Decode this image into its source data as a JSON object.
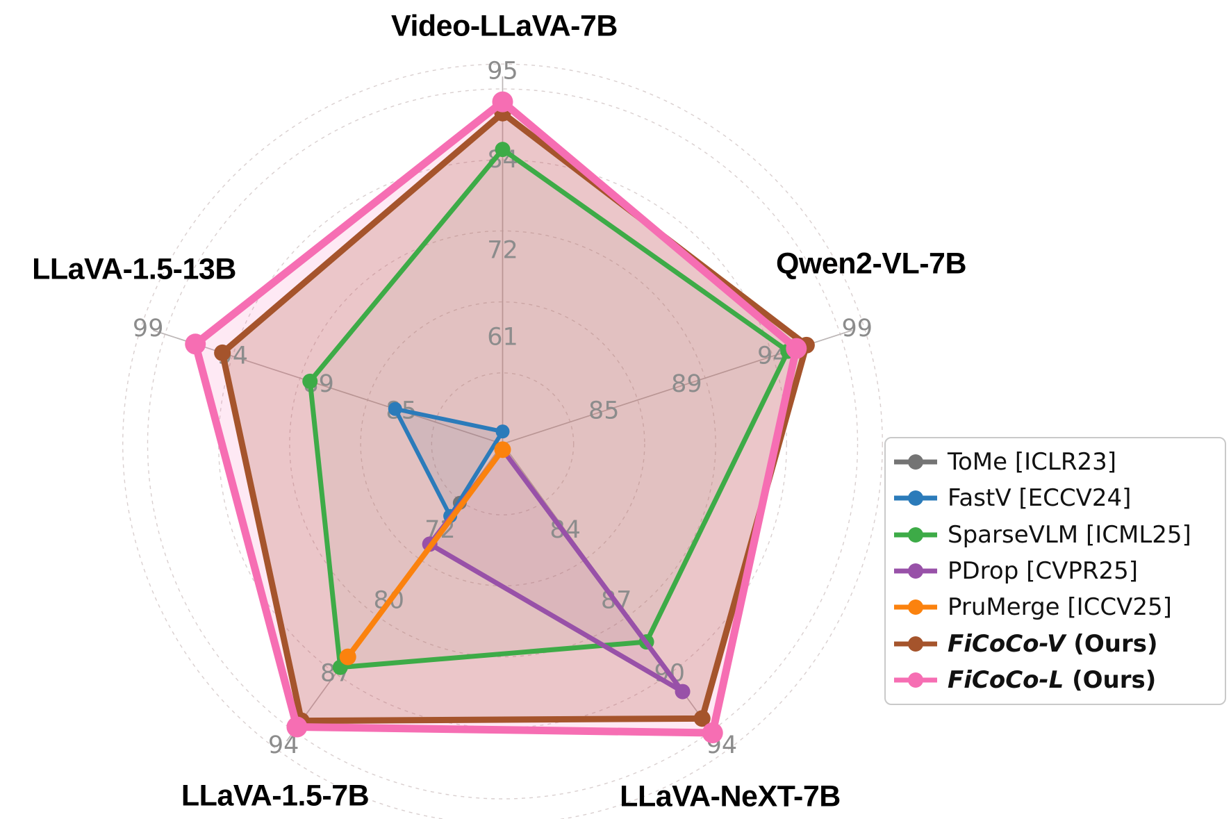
{
  "figure": {
    "kind": "radar comparison of token-reduction methods across multimodal LLMs"
  },
  "chart_data": {
    "type": "radar",
    "title": "",
    "legend_position": "right",
    "axes": [
      {
        "label": "Video-LLaVA-7B",
        "tick_labels": [
          "61",
          "72",
          "84",
          "95"
        ],
        "tick_values": [
          61,
          72,
          84,
          95
        ]
      },
      {
        "label": "Qwen2-VL-7B",
        "tick_labels": [
          "85",
          "89",
          "94",
          "99"
        ],
        "tick_values": [
          85,
          89,
          94,
          99
        ]
      },
      {
        "label": "LLaVA-NeXT-7B",
        "tick_labels": [
          "84",
          "87",
          "90",
          "94"
        ],
        "tick_values": [
          84,
          87,
          90,
          94
        ]
      },
      {
        "label": "LLaVA-1.5-7B",
        "tick_labels": [
          "72",
          "80",
          "87",
          "94"
        ],
        "tick_values": [
          72,
          80,
          87,
          94
        ]
      },
      {
        "label": "LLaVA-1.5-13B",
        "tick_labels": [
          "85",
          "89",
          "94",
          "99"
        ],
        "tick_values": [
          85,
          89,
          94,
          99
        ]
      }
    ],
    "series": [
      {
        "name": "ToMe",
        "legend": {
          "label": "ToMe",
          "ref": " [ICLR23]",
          "suffix": "",
          "emphasis": false
        },
        "color": "#747474",
        "fill_opacity": 0,
        "line_width": 6,
        "marker_radius": 10,
        "values": [
          null,
          null,
          null,
          68.9,
          null
        ]
      },
      {
        "name": "FastV",
        "legend": {
          "label": "FastV",
          "ref": " [ECCV24]",
          "suffix": "",
          "emphasis": false
        },
        "color": "#2b7bba",
        "fill_opacity": 0.13,
        "line_width": 6,
        "marker_radius": 10,
        "values": [
          49.1,
          null,
          null,
          70.4,
          85.3
        ]
      },
      {
        "name": "SparseVLM",
        "legend": {
          "label": "SparseVLM",
          "ref": " [ICML25]",
          "suffix": "",
          "emphasis": false
        },
        "color": "#3dab47",
        "fill_opacity": 0.07,
        "line_width": 7,
        "marker_radius": 11,
        "values": [
          85.3,
          94.9,
          88.7,
          86.4,
          89.5
        ]
      },
      {
        "name": "PDrop",
        "legend": {
          "label": "PDrop",
          "ref": " [CVPR25]",
          "suffix": "",
          "emphasis": false
        },
        "color": "#9851a8",
        "fill_opacity": 0.1,
        "line_width": 7,
        "marker_radius": 11,
        "values": [
          46.8,
          null,
          91.0,
          73.6,
          null
        ]
      },
      {
        "name": "PruMerge",
        "legend": {
          "label": "PruMerge",
          "ref": " [ICCV25]",
          "suffix": "",
          "emphasis": false
        },
        "color": "#fb820e",
        "fill_opacity": 0,
        "line_width": 8,
        "marker_radius": 12,
        "values": [
          46.8,
          null,
          null,
          85.4,
          null
        ]
      },
      {
        "name": "FiCoCo-V",
        "legend": {
          "label": "FiCoCo-V",
          "ref": "",
          "suffix": " (Ours)",
          "emphasis": true
        },
        "color": "#a5542c",
        "fill_opacity": 0.24,
        "line_width": 9,
        "marker_radius": 12,
        "values": [
          89.8,
          96.0,
          92.5,
          91.6,
          94.6
        ]
      },
      {
        "name": "FiCoCo-L",
        "legend": {
          "label": "FiCoCo-L",
          "ref": "",
          "suffix": " (Ours)",
          "emphasis": true
        },
        "color": "#f66eb3",
        "fill_opacity": 0.15,
        "line_width": 11,
        "marker_radius": 15,
        "values": [
          91.2,
          95.4,
          93.3,
          92.2,
          96.2
        ]
      }
    ],
    "grid": {
      "ring_fractions": [
        0.2,
        0.4,
        0.6,
        0.8,
        1.0,
        1.07
      ],
      "tick_fractions": [
        0.3,
        0.545,
        0.8,
        1.05
      ],
      "spoke_end_fraction": 1.035,
      "ring_color": "#b9a8a8",
      "spoke_color": "#bcb6b6",
      "tick_color": "#8c8c8c"
    }
  }
}
